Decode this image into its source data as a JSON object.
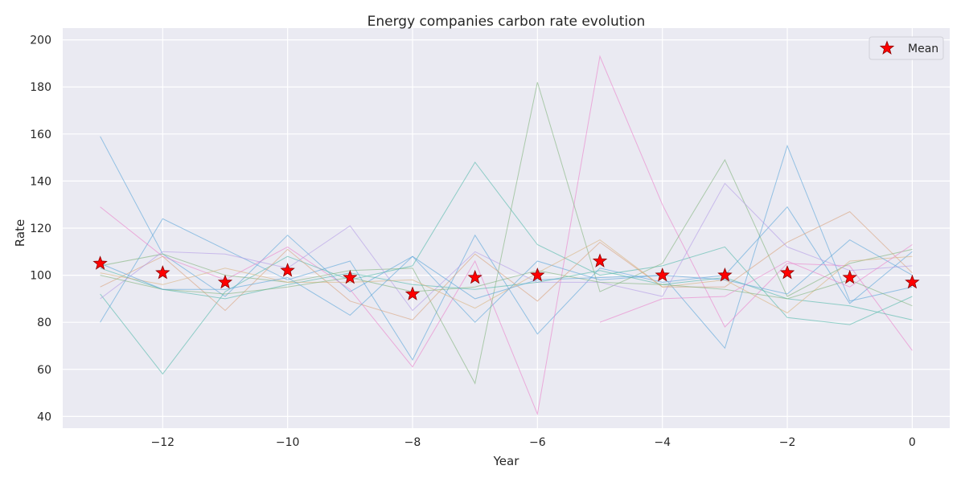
{
  "chart_data": {
    "type": "line",
    "title": "Energy companies carbon rate evolution",
    "xlabel": "Year",
    "ylabel": "Rate",
    "xlim": [
      -13.6,
      0.6
    ],
    "ylim": [
      35,
      205
    ],
    "xticks": [
      -12,
      -10,
      -8,
      -6,
      -4,
      -2,
      0
    ],
    "yticks": [
      40,
      60,
      80,
      100,
      120,
      140,
      160,
      180,
      200
    ],
    "grid": true,
    "legend": {
      "position": "top-right",
      "entries": [
        "Mean"
      ]
    },
    "x": [
      -13,
      -12,
      -11,
      -10,
      -9,
      -8,
      -7,
      -6,
      -5,
      -4,
      -3,
      -2,
      -1,
      0
    ],
    "mean": {
      "name": "Mean",
      "marker": "star",
      "color": "#ff0000",
      "values": [
        105,
        101,
        97,
        102,
        99,
        92,
        99,
        100,
        106,
        100,
        100,
        101,
        99,
        97
      ]
    },
    "series": [
      {
        "color": "#56a3d9",
        "values": [
          159,
          109,
          91,
          117,
          93,
          108,
          80,
          106,
          98,
          100,
          69,
          155,
          89,
          95
        ]
      },
      {
        "color": "#56a3d9",
        "values": [
          80,
          124,
          111,
          98,
          106,
          64,
          117,
          75,
          103,
          97,
          100,
          129,
          88,
          110
        ]
      },
      {
        "color": "#ea7fc9",
        "values": [
          129,
          108,
          98,
          112,
          94,
          61,
          106,
          41,
          193,
          130,
          78,
          105,
          104,
          68
        ]
      },
      {
        "color": "#4fb8a8",
        "values": [
          92,
          58,
          93,
          108,
          98,
          104,
          148,
          113,
          100,
          104,
          112,
          82,
          79,
          91
        ]
      },
      {
        "color": "#7fb37a",
        "values": [
          104,
          109,
          100,
          97,
          102,
          103,
          54,
          182,
          93,
          105,
          149,
          91,
          105,
          111
        ]
      },
      {
        "color": "#d9a07a",
        "values": [
          95,
          108,
          85,
          111,
          89,
          81,
          109,
          89,
          114,
          95,
          95,
          114,
          127,
          101
        ]
      },
      {
        "color": "#b39ae6",
        "values": [
          90,
          110,
          109,
          103,
          121,
          85,
          110,
          97,
          97,
          91,
          139,
          112,
          102,
          104
        ]
      },
      {
        "color": "#4fb8a8",
        "values": [
          103,
          94,
          90,
          96,
          101,
          96,
          94,
          97,
          102,
          96,
          99,
          90,
          87,
          81
        ]
      },
      {
        "color": "#d9b07a",
        "values": [
          101,
          96,
          103,
          97,
          97,
          98,
          86,
          101,
          115,
          95,
          98,
          84,
          106,
          108
        ]
      },
      {
        "color": "#7fb37a",
        "values": [
          100,
          94,
          92,
          95,
          99,
          93,
          95,
          102,
          97,
          96,
          94,
          90,
          98,
          87
        ]
      },
      {
        "color": "#56a3d9",
        "values": [
          105,
          94,
          94,
          99,
          83,
          108,
          90,
          98,
          99,
          100,
          98,
          92,
          115,
          100
        ]
      },
      {
        "color": "#ea7fc9",
        "values": [
          null,
          null,
          null,
          null,
          null,
          null,
          null,
          null,
          80,
          90,
          91,
          106,
          95,
          113
        ]
      }
    ]
  }
}
